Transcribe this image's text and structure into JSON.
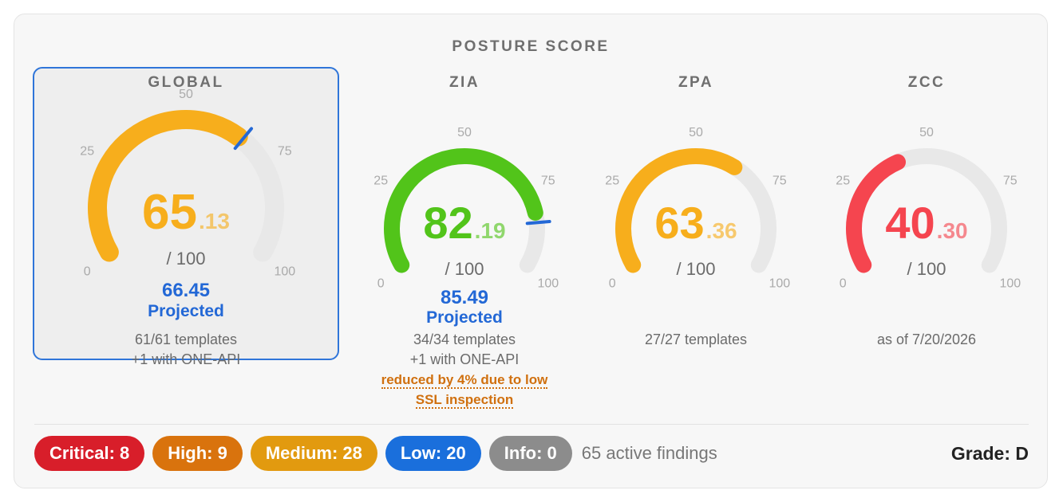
{
  "header": {
    "title": "POSTURE SCORE"
  },
  "colors": {
    "accent": "#2368d6",
    "global_arc": "#f7ae1c",
    "zia_arc": "#52c41a",
    "zpa_arc": "#f7ae1c",
    "zcc_arc": "#f5454f",
    "track": "#e8e8e8",
    "marker": "#2368d6"
  },
  "gauges": [
    {
      "id": "global",
      "label": "GLOBAL",
      "score_int": "65",
      "score_dec": ".13",
      "score": 65.13,
      "out_of": "/ 100",
      "projected_value": "66.45",
      "projected": 66.45,
      "projected_label": "Projected",
      "line1": "61/61 templates",
      "line2": "+1 with ONE-API",
      "warning": "",
      "color": "#f7ae1c",
      "ticks": [
        "0",
        "25",
        "50",
        "75",
        "100"
      ],
      "selected": true
    },
    {
      "id": "zia",
      "label": "ZIA",
      "score_int": "82",
      "score_dec": ".19",
      "score": 82.19,
      "out_of": "/ 100",
      "projected_value": "85.49",
      "projected": 85.49,
      "projected_label": "Projected",
      "line1": "34/34 templates",
      "line2": "+1 with ONE-API",
      "warning": "reduced by 4% due to low SSL inspection",
      "warning_line1": "reduced by 4% due to low",
      "warning_line2": "SSL inspection",
      "color": "#52c41a",
      "ticks": [
        "0",
        "25",
        "50",
        "75",
        "100"
      ],
      "selected": false
    },
    {
      "id": "zpa",
      "label": "ZPA",
      "score_int": "63",
      "score_dec": ".36",
      "score": 63.36,
      "out_of": "/ 100",
      "line1": "27/27 templates",
      "color": "#f7ae1c",
      "ticks": [
        "0",
        "25",
        "50",
        "75",
        "100"
      ],
      "selected": false
    },
    {
      "id": "zcc",
      "label": "ZCC",
      "score_int": "40",
      "score_dec": ".30",
      "score": 40.3,
      "out_of": "/ 100",
      "line1": "as of 7/20/2026",
      "color": "#f5454f",
      "ticks": [
        "0",
        "25",
        "50",
        "75",
        "100"
      ],
      "selected": false
    }
  ],
  "findings": {
    "badges": [
      {
        "label": "Critical: 8",
        "color": "#d81e2a"
      },
      {
        "label": "High: 9",
        "color": "#d9730d"
      },
      {
        "label": "Medium: 28",
        "color": "#e29a0f"
      },
      {
        "label": "Low: 20",
        "color": "#1a6fdc"
      },
      {
        "label": "Info: 0",
        "color": "#8c8c8c"
      }
    ],
    "active_text": "65 active findings",
    "grade": "Grade: D"
  }
}
